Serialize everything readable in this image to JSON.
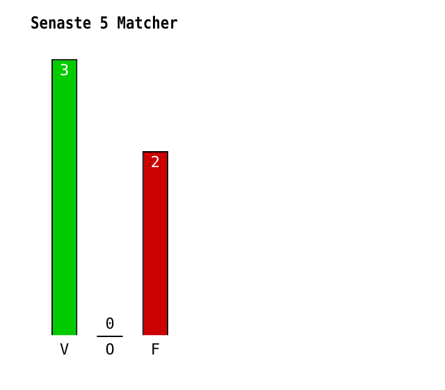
{
  "chart_data": {
    "type": "bar",
    "title": "Senaste 5 Matcher",
    "categories": [
      "V",
      "O",
      "F"
    ],
    "values": [
      3,
      0,
      2
    ],
    "colors": [
      "#00cc00",
      "#808080",
      "#cc0000"
    ],
    "relative": false,
    "data_labels": true,
    "grid": false,
    "legend": false
  }
}
